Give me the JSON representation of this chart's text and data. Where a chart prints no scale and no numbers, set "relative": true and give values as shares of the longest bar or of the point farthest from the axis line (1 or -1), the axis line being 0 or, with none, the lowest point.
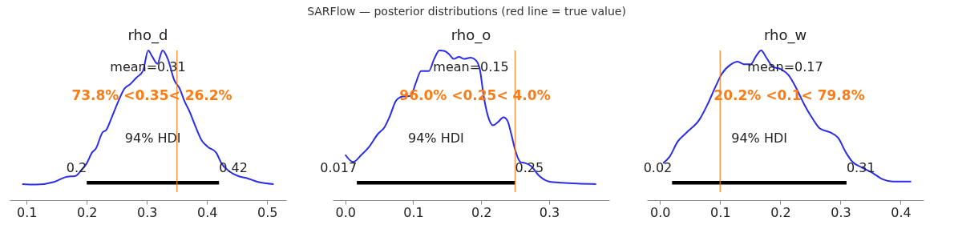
{
  "chart_data": [
    {
      "type": "other",
      "title": "SARFlow — posterior distributions (red line = true value)"
    },
    {
      "type": "line",
      "title": "rho_d",
      "relative": true,
      "xlim": [
        0.0717,
        0.5317
      ],
      "xticks": [
        0.1,
        0.2,
        0.3,
        0.4,
        0.5
      ],
      "series": [
        {
          "color": "#2a2eec",
          "x": [
            0.0926,
            0.115,
            0.1457,
            0.1674,
            0.1804,
            0.1913,
            0.2,
            0.2087,
            0.2152,
            0.2261,
            0.2326,
            0.2413,
            0.2522,
            0.263,
            0.2717,
            0.2826,
            0.2935,
            0.3022,
            0.3087,
            0.3174,
            0.3261,
            0.3348,
            0.3457,
            0.3543,
            0.363,
            0.3717,
            0.3804,
            0.3913,
            0.4022,
            0.4152,
            0.4239,
            0.437,
            0.4522,
            0.4652,
            0.4848,
            0.5109
          ],
          "values": [
            0.057,
            0.053,
            0.072,
            0.109,
            0.113,
            0.157,
            0.204,
            0.279,
            0.308,
            0.421,
            0.44,
            0.525,
            0.638,
            0.732,
            0.76,
            0.808,
            0.855,
            1.0,
            0.958,
            0.906,
            1.0,
            0.94,
            0.789,
            0.732,
            0.638,
            0.562,
            0.468,
            0.364,
            0.317,
            0.279,
            0.204,
            0.147,
            0.113,
            0.1,
            0.072,
            0.057
          ]
        },
        {
          "color": "#000000",
          "x": [
            0.2,
            0.42
          ],
          "values": [
            0.066,
            0.066
          ]
        }
      ],
      "ref_lines": [
        {
          "axis": "x",
          "value": 0.35,
          "label": "73.8% <0.35< 26.2%",
          "color": "#fa7c17"
        }
      ],
      "annotations": [
        "mean=0.31",
        "94% HDI",
        "0.2",
        "0.42"
      ]
    },
    {
      "type": "line",
      "title": "rho_o",
      "relative": true,
      "xlim": [
        -0.0185,
        0.3885
      ],
      "xticks": [
        {
          "value": 0,
          "label": "0.0"
        },
        0.1,
        0.2,
        0.3
      ],
      "series": [
        {
          "color": "#2a2eec",
          "x": [
            0,
            0.0115,
            0.0231,
            0.0346,
            0.0481,
            0.0577,
            0.0654,
            0.075,
            0.0846,
            0.0962,
            0.1038,
            0.1115,
            0.1231,
            0.1308,
            0.1385,
            0.1462,
            0.1538,
            0.1596,
            0.1673,
            0.175,
            0.1846,
            0.1923,
            0.1981,
            0.2038,
            0.2096,
            0.2173,
            0.225,
            0.2327,
            0.2385,
            0.2442,
            0.25,
            0.2577,
            0.2654,
            0.2731,
            0.2846,
            0.3,
            0.3192,
            0.3462,
            0.3692
          ],
          "values": [
            0.264,
            0.213,
            0.26,
            0.317,
            0.411,
            0.458,
            0.534,
            0.647,
            0.675,
            0.679,
            0.77,
            0.855,
            0.855,
            0.94,
            1.0,
            0.996,
            0.968,
            0.94,
            0.955,
            0.94,
            0.949,
            0.93,
            0.864,
            0.675,
            0.543,
            0.472,
            0.496,
            0.528,
            0.506,
            0.411,
            0.298,
            0.213,
            0.204,
            0.185,
            0.119,
            0.075,
            0.066,
            0.06,
            0.057
          ]
        },
        {
          "color": "#000000",
          "x": [
            0.017,
            0.25
          ],
          "values": [
            0.066,
            0.066
          ]
        }
      ],
      "ref_lines": [
        {
          "axis": "x",
          "value": 0.25,
          "label": "96.0% <0.25< 4.0%",
          "color": "#fa7c17"
        }
      ],
      "annotations": [
        "mean=0.15",
        "94% HDI",
        "0.017",
        "0.25"
      ]
    },
    {
      "type": "line",
      "title": "rho_w",
      "relative": true,
      "xlim": [
        -0.0217,
        0.438
      ],
      "xticks": [
        {
          "value": 0,
          "label": "0.0"
        },
        0.1,
        0.2,
        0.3,
        0.4
      ],
      "series": [
        {
          "color": "#2a2eec",
          "x": [
            0.0052,
            0.0161,
            0.0291,
            0.0443,
            0.066,
            0.079,
            0.092,
            0.1029,
            0.118,
            0.1289,
            0.1399,
            0.1507,
            0.1594,
            0.1681,
            0.1768,
            0.1877,
            0.2007,
            0.2137,
            0.2267,
            0.2397,
            0.2527,
            0.2658,
            0.2831,
            0.2961,
            0.3091,
            0.32,
            0.3351,
            0.3525,
            0.3698,
            0.3872,
            0.4174
          ],
          "values": [
            0.204,
            0.251,
            0.355,
            0.421,
            0.515,
            0.619,
            0.742,
            0.836,
            0.902,
            0.921,
            0.902,
            0.902,
            0.958,
            1.0,
            0.949,
            0.883,
            0.868,
            0.826,
            0.732,
            0.619,
            0.525,
            0.449,
            0.421,
            0.383,
            0.279,
            0.213,
            0.175,
            0.138,
            0.091,
            0.075,
            0.075
          ]
        },
        {
          "color": "#000000",
          "x": [
            0.02,
            0.31
          ],
          "values": [
            0.066,
            0.066
          ]
        }
      ],
      "ref_lines": [
        {
          "axis": "x",
          "value": 0.1,
          "label": "20.2% <0.1< 79.8%",
          "color": "#fa7c17"
        }
      ],
      "annotations": [
        "mean=0.17",
        "94% HDI",
        "0.02",
        "0.31"
      ]
    }
  ]
}
